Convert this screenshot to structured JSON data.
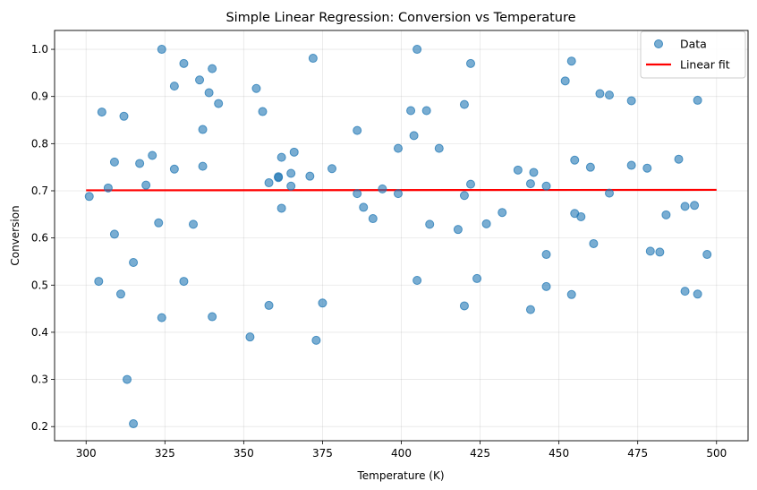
{
  "chart_data": {
    "type": "scatter",
    "title": "Simple Linear Regression: Conversion vs Temperature",
    "xlabel": "Temperature (K)",
    "ylabel": "Conversion",
    "xlim": [
      290,
      510
    ],
    "ylim": [
      0.17,
      1.04
    ],
    "x_ticks": [
      300,
      325,
      350,
      375,
      400,
      425,
      450,
      475,
      500
    ],
    "y_ticks": [
      0.2,
      0.3,
      0.4,
      0.5,
      0.6,
      0.7,
      0.8,
      0.9,
      1.0
    ],
    "grid": true,
    "legend_position": "top-right",
    "colors": {
      "data": "#1f77b4",
      "fit": "#ff0000"
    },
    "series": [
      {
        "name": "Data",
        "kind": "scatter",
        "points": [
          [
            301,
            0.688
          ],
          [
            304,
            0.508
          ],
          [
            305,
            0.867
          ],
          [
            307,
            0.706
          ],
          [
            309,
            0.761
          ],
          [
            309,
            0.608
          ],
          [
            311,
            0.481
          ],
          [
            312,
            0.858
          ],
          [
            313,
            0.3
          ],
          [
            315,
            0.548
          ],
          [
            315,
            0.206
          ],
          [
            317,
            0.758
          ],
          [
            319,
            0.712
          ],
          [
            321,
            0.775
          ],
          [
            323,
            0.632
          ],
          [
            324,
            0.431
          ],
          [
            324,
            1.0
          ],
          [
            328,
            0.922
          ],
          [
            328,
            0.746
          ],
          [
            331,
            0.97
          ],
          [
            331,
            0.508
          ],
          [
            334,
            0.629
          ],
          [
            336,
            0.935
          ],
          [
            337,
            0.83
          ],
          [
            337,
            0.752
          ],
          [
            339,
            0.908
          ],
          [
            340,
            0.959
          ],
          [
            340,
            0.433
          ],
          [
            342,
            0.885
          ],
          [
            352,
            0.39
          ],
          [
            354,
            0.917
          ],
          [
            356,
            0.868
          ],
          [
            358,
            0.717
          ],
          [
            358,
            0.457
          ],
          [
            361,
            0.728
          ],
          [
            361,
            0.73
          ],
          [
            362,
            0.771
          ],
          [
            362,
            0.663
          ],
          [
            365,
            0.737
          ],
          [
            365,
            0.71
          ],
          [
            366,
            0.782
          ],
          [
            371,
            0.731
          ],
          [
            372,
            0.981
          ],
          [
            373,
            0.383
          ],
          [
            375,
            0.462
          ],
          [
            378,
            0.747
          ],
          [
            386,
            0.694
          ],
          [
            386,
            0.828
          ],
          [
            388,
            0.665
          ],
          [
            391,
            0.641
          ],
          [
            394,
            0.704
          ],
          [
            399,
            0.79
          ],
          [
            399,
            0.694
          ],
          [
            403,
            0.87
          ],
          [
            404,
            0.817
          ],
          [
            405,
            0.51
          ],
          [
            405,
            1.0
          ],
          [
            408,
            0.87
          ],
          [
            409,
            0.629
          ],
          [
            412,
            0.79
          ],
          [
            418,
            0.618
          ],
          [
            420,
            0.69
          ],
          [
            420,
            0.883
          ],
          [
            420,
            0.456
          ],
          [
            422,
            0.714
          ],
          [
            422,
            0.97
          ],
          [
            424,
            0.514
          ],
          [
            427,
            0.63
          ],
          [
            432,
            0.654
          ],
          [
            437,
            0.744
          ],
          [
            441,
            0.715
          ],
          [
            441,
            0.448
          ],
          [
            442,
            0.739
          ],
          [
            446,
            0.71
          ],
          [
            446,
            0.497
          ],
          [
            446,
            0.565
          ],
          [
            452,
            0.933
          ],
          [
            454,
            0.975
          ],
          [
            454,
            0.48
          ],
          [
            455,
            0.765
          ],
          [
            455,
            0.652
          ],
          [
            457,
            0.645
          ],
          [
            460,
            0.75
          ],
          [
            461,
            0.588
          ],
          [
            463,
            0.906
          ],
          [
            466,
            0.695
          ],
          [
            466,
            0.903
          ],
          [
            473,
            0.754
          ],
          [
            473,
            0.891
          ],
          [
            478,
            0.748
          ],
          [
            479,
            0.572
          ],
          [
            482,
            0.57
          ],
          [
            484,
            0.649
          ],
          [
            488,
            0.767
          ],
          [
            490,
            0.487
          ],
          [
            490,
            0.667
          ],
          [
            493,
            0.669
          ],
          [
            494,
            0.481
          ],
          [
            494,
            0.892
          ],
          [
            497,
            0.565
          ]
        ]
      },
      {
        "name": "Linear fit",
        "kind": "line",
        "points": [
          [
            300,
            0.701
          ],
          [
            500,
            0.702
          ]
        ]
      }
    ]
  }
}
